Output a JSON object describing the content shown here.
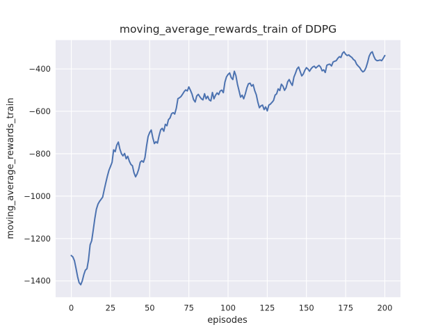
{
  "figure": {
    "kind": "matplotlib-seaborn-figure",
    "background": "#ffffff"
  },
  "chart_data": {
    "type": "line",
    "title": "moving_average_rewards_train of DDPG",
    "xlabel": "episodes",
    "ylabel": "moving_average_rewards_train",
    "legend": false,
    "grid": true,
    "x_ticks": [
      0,
      25,
      50,
      75,
      100,
      125,
      150,
      175,
      200
    ],
    "y_ticks": [
      -400,
      -600,
      -800,
      -1000,
      -1200,
      -1400
    ],
    "xlim": [
      -10,
      210
    ],
    "ylim": [
      -1477,
      -264
    ],
    "colors": {
      "plot_bg": "#eaeaf2",
      "grid": "#ffffff",
      "line": "#4c72b0",
      "text": "#262626",
      "figure_bg": "#ffffff"
    },
    "series": [
      {
        "name": "moving_average_rewards_train",
        "x_unit": "episodes",
        "x_start": 0,
        "x_step": 1,
        "values": [
          -1280,
          -1287,
          -1305,
          -1340,
          -1380,
          -1408,
          -1418,
          -1400,
          -1370,
          -1349,
          -1342,
          -1300,
          -1230,
          -1210,
          -1160,
          -1105,
          -1062,
          -1038,
          -1025,
          -1015,
          -1005,
          -970,
          -938,
          -906,
          -878,
          -860,
          -840,
          -782,
          -790,
          -760,
          -745,
          -778,
          -800,
          -810,
          -799,
          -824,
          -812,
          -835,
          -850,
          -857,
          -890,
          -909,
          -895,
          -873,
          -840,
          -833,
          -840,
          -818,
          -763,
          -719,
          -700,
          -688,
          -725,
          -752,
          -743,
          -750,
          -715,
          -687,
          -680,
          -694,
          -661,
          -668,
          -639,
          -631,
          -611,
          -606,
          -613,
          -585,
          -540,
          -536,
          -530,
          -519,
          -507,
          -499,
          -504,
          -485,
          -501,
          -518,
          -545,
          -556,
          -528,
          -520,
          -531,
          -541,
          -546,
          -517,
          -541,
          -529,
          -546,
          -551,
          -511,
          -541,
          -524,
          -513,
          -521,
          -504,
          -500,
          -512,
          -462,
          -438,
          -426,
          -419,
          -441,
          -450,
          -411,
          -432,
          -472,
          -503,
          -533,
          -524,
          -541,
          -518,
          -489,
          -470,
          -467,
          -481,
          -474,
          -502,
          -522,
          -556,
          -583,
          -574,
          -571,
          -592,
          -579,
          -598,
          -571,
          -566,
          -558,
          -549,
          -524,
          -517,
          -494,
          -502,
          -472,
          -481,
          -501,
          -489,
          -461,
          -450,
          -466,
          -478,
          -439,
          -421,
          -400,
          -391,
          -412,
          -433,
          -424,
          -406,
          -394,
          -401,
          -411,
          -399,
          -391,
          -387,
          -396,
          -389,
          -383,
          -391,
          -409,
          -404,
          -417,
          -383,
          -379,
          -378,
          -386,
          -367,
          -364,
          -361,
          -350,
          -342,
          -346,
          -326,
          -319,
          -331,
          -337,
          -334,
          -341,
          -346,
          -356,
          -361,
          -378,
          -386,
          -394,
          -406,
          -414,
          -409,
          -394,
          -369,
          -340,
          -325,
          -319,
          -341,
          -356,
          -361,
          -360,
          -358,
          -361,
          -350,
          -337
        ]
      }
    ]
  }
}
